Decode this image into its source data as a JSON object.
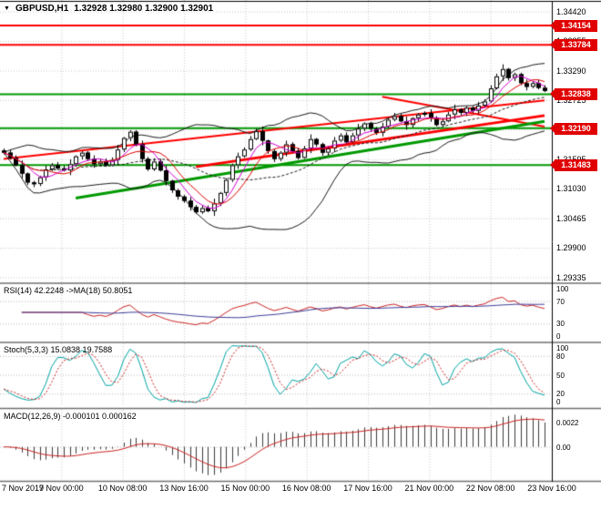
{
  "legend": {
    "dropdown_icon": "▼",
    "symbol": "GBPUSD,H1",
    "ohlc": "1.32928 1.32980 1.32900 1.32901"
  },
  "price_axis": {
    "ticks": [
      {
        "label": "1.34420",
        "price": 1.3442
      },
      {
        "label": "1.33855",
        "price": 1.33855
      },
      {
        "label": "1.33290",
        "price": 1.3329
      },
      {
        "label": "1.32725",
        "price": 1.32725
      },
      {
        "label": "1.32160",
        "price": 1.3216
      },
      {
        "label": "1.31595",
        "price": 1.31595
      },
      {
        "label": "1.31030",
        "price": 1.3103
      },
      {
        "label": "1.30465",
        "price": 1.30465
      },
      {
        "label": "1.29900",
        "price": 1.299
      },
      {
        "label": "1.29335",
        "price": 1.29335
      }
    ]
  },
  "time_axis": {
    "labels": [
      "7 Nov 2017",
      "9 Nov 00:00",
      "10 Nov 08:00",
      "13 Nov 16:00",
      "15 Nov 00:00",
      "16 Nov 08:00",
      "17 Nov 16:00",
      "21 Nov 00:00",
      "22 Nov 08:00",
      "23 Nov 16:00"
    ]
  },
  "badge_color": "#e00000",
  "levels": [
    {
      "label": "1.34154",
      "price": 1.34154,
      "color": "#ff0000",
      "width": 2
    },
    {
      "label": "1.33784",
      "price": 1.33784,
      "color": "#ff0000",
      "width": 2
    },
    {
      "label": "1.32838",
      "price": 1.32838,
      "color": "#009900",
      "width": 2
    },
    {
      "label": "1.32190",
      "price": 1.3219,
      "color": "#009900",
      "width": 2
    },
    {
      "label": "1.31483",
      "price": 1.31483,
      "color": "#009900",
      "width": 2
    }
  ],
  "trendlines": [
    {
      "from": [
        0,
        1.316
      ],
      "to": [
        90,
        1.3272
      ],
      "color": "#ff0000",
      "width": 2
    },
    {
      "from": [
        32,
        1.3145
      ],
      "to": [
        90,
        1.3243
      ],
      "color": "#ff0000",
      "width": 3
    },
    {
      "from": [
        63,
        1.3279
      ],
      "to": [
        90,
        1.3222
      ],
      "color": "#ff0000",
      "width": 2
    },
    {
      "from": [
        12,
        1.3085
      ],
      "to": [
        90,
        1.3232
      ],
      "color": "#009900",
      "width": 3
    }
  ],
  "indicators": {
    "rsi": {
      "label": "RSI(14) 42.2248 ->MA(18) 50.8051",
      "ticks": [
        100,
        70,
        30,
        0
      ],
      "levels": [
        30,
        70
      ],
      "line_color": "#cc2222",
      "ma_color": "#3b3b99"
    },
    "stoch": {
      "label": "Stoch(5,3,3) 15.0838 19.7588",
      "ticks": [
        100,
        80,
        50,
        20,
        0
      ],
      "levels": [
        20,
        50,
        80
      ],
      "k_color": "#00a3a3",
      "d_color": "#cc2222"
    },
    "macd": {
      "label": "MACD(12,26,9) -0.000101 0.000162",
      "ticks": [
        {
          "label": "0.0022",
          "value": 0.0022
        },
        {
          "label": "0.00",
          "value": 0
        }
      ],
      "hist_color": "#3c3c3c",
      "signal_color": "#cc2222"
    }
  },
  "colors": {
    "bull": "#ffffff",
    "bear": "#000000",
    "outline": "#000000",
    "bb": "#1a1a1a",
    "ma_fast": "#d400d4",
    "ma_slow": "#e00000",
    "grid": "#c8c8c8",
    "separator": "#707070",
    "axis_text": "#000000",
    "bg": "#ffffff"
  },
  "chart_data": {
    "type": "candlestick",
    "symbol": "GBPUSD",
    "timeframe": "H1",
    "title": "GBPUSD,H1",
    "current_ohlc": {
      "open": "1.32928",
      "high": "1.32980",
      "low": "1.32900",
      "close": "1.32901"
    },
    "bid_level": "1.32838",
    "ylim": [
      1.2924,
      1.3464
    ],
    "closes": [
      1.3172,
      1.3162,
      1.3148,
      1.3132,
      1.3115,
      1.3112,
      1.3125,
      1.314,
      1.3148,
      1.3142,
      1.3138,
      1.315,
      1.3165,
      1.3172,
      1.316,
      1.315,
      1.3155,
      1.3148,
      1.3158,
      1.3178,
      1.32,
      1.3212,
      1.3188,
      1.316,
      1.314,
      1.3155,
      1.3138,
      1.3118,
      1.31,
      1.3088,
      1.308,
      1.3068,
      1.3058,
      1.3066,
      1.306,
      1.3075,
      1.3095,
      1.312,
      1.3148,
      1.3165,
      1.3178,
      1.3198,
      1.3213,
      1.3195,
      1.3175,
      1.316,
      1.3172,
      1.3188,
      1.3175,
      1.3162,
      1.318,
      1.3198,
      1.3188,
      1.3172,
      1.318,
      1.3195,
      1.3205,
      1.3192,
      1.3205,
      1.3218,
      1.3228,
      1.3218,
      1.321,
      1.3222,
      1.3235,
      1.3242,
      1.3232,
      1.3225,
      1.3238,
      1.3245,
      1.3248,
      1.3238,
      1.3225,
      1.3232,
      1.3245,
      1.3255,
      1.3248,
      1.3258,
      1.3252,
      1.3262,
      1.327,
      1.3295,
      1.3318,
      1.3332,
      1.3315,
      1.3322,
      1.3305,
      1.3298,
      1.3305,
      1.3296,
      1.329
    ],
    "wick_pattern": [
      0.0004,
      0.0009,
      0.0003,
      0.0006,
      0.0002,
      0.0007,
      0.0005,
      0.0003
    ],
    "indicator_params": {
      "rsi_period": 14,
      "rsi_ma": 18,
      "stoch": [
        5,
        3,
        3
      ],
      "macd": [
        12,
        26,
        9
      ],
      "bollinger": [
        20,
        2
      ]
    }
  }
}
